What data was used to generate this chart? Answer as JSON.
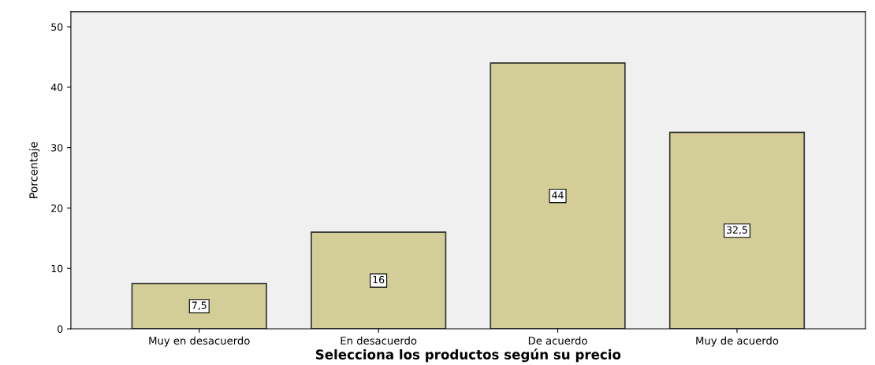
{
  "chart_data": {
    "type": "bar",
    "xlabel": "Selecciona los productos según su precio",
    "ylabel": "Porcentaje",
    "categories": [
      "Muy en desacuerdo",
      "En desacuerdo",
      "De acuerdo",
      "Muy de acuerdo"
    ],
    "values": [
      7.5,
      16,
      44,
      32.5
    ],
    "value_labels": [
      "7,5",
      "16",
      "44",
      "32,5"
    ],
    "color": "#d3ce97",
    "ylim": [
      0,
      52.5
    ],
    "yticks": [
      0,
      10,
      20,
      30,
      40,
      50
    ],
    "grid": false,
    "legend": false
  }
}
